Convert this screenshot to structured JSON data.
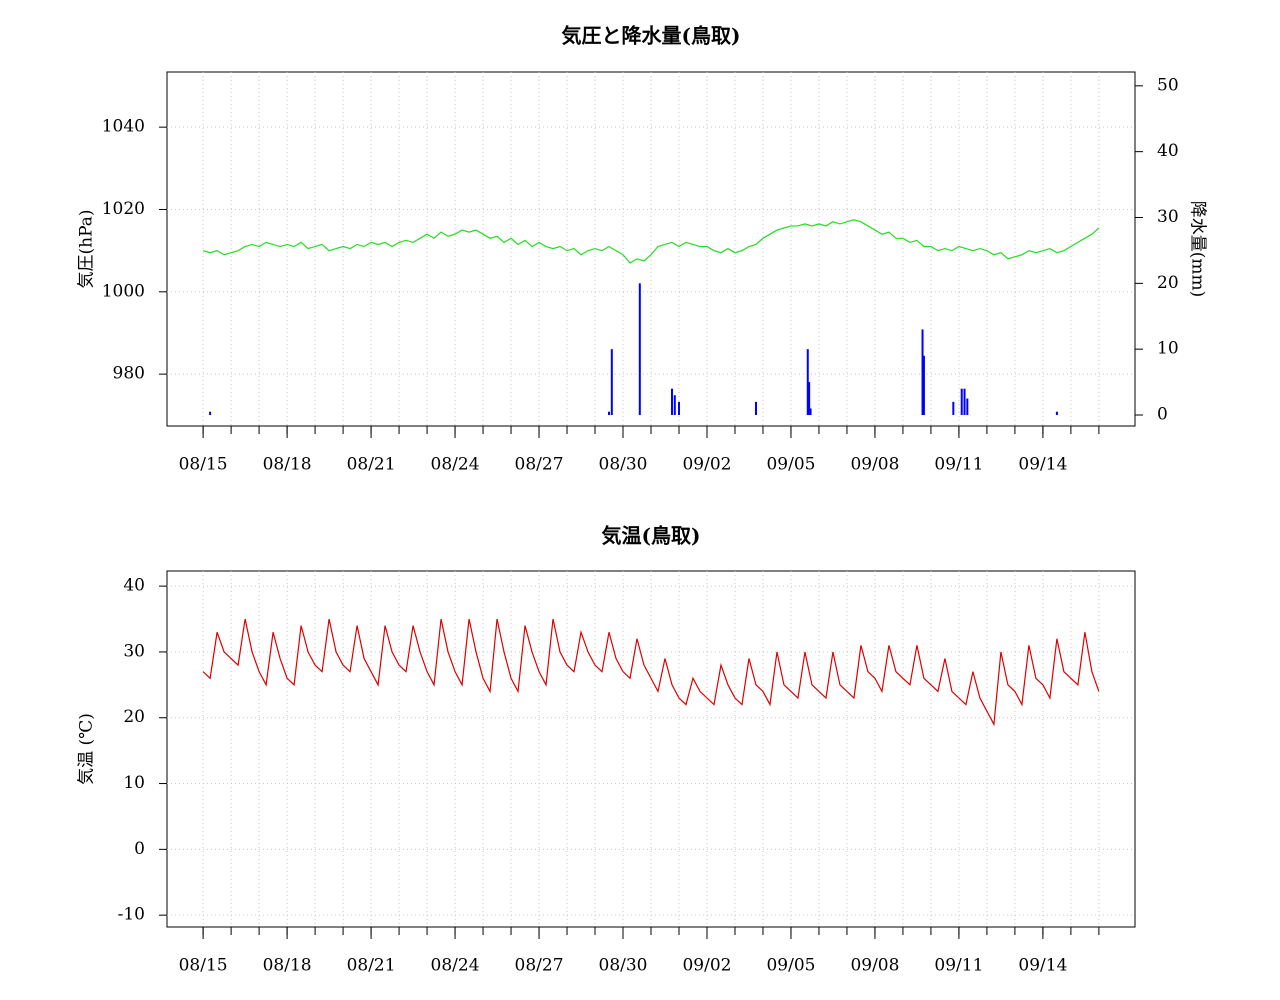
{
  "chart_data": [
    {
      "type": "combo",
      "title": "気圧と降水量(鳥取)",
      "y_label": "気圧(hPa)",
      "y2_label": "降水量(mm)",
      "xlim": [
        -1.29,
        33.29
      ],
      "ylim": [
        967.4,
        1053.4
      ],
      "y2lim": [
        -1.67,
        52.1
      ],
      "xticks": [
        {
          "value": 0,
          "label": "08/15"
        },
        {
          "value": 3,
          "label": "08/18"
        },
        {
          "value": 6,
          "label": "08/21"
        },
        {
          "value": 9,
          "label": "08/24"
        },
        {
          "value": 12,
          "label": "08/27"
        },
        {
          "value": 15,
          "label": "08/30"
        },
        {
          "value": 18,
          "label": "09/02"
        },
        {
          "value": 21,
          "label": "09/05"
        },
        {
          "value": 24,
          "label": "09/08"
        },
        {
          "value": 27,
          "label": "09/11"
        },
        {
          "value": 30,
          "label": "09/14"
        }
      ],
      "xminor_ticks": [
        0,
        1,
        2,
        3,
        4,
        5,
        6,
        7,
        8,
        9,
        10,
        11,
        12,
        13,
        14,
        15,
        16,
        17,
        18,
        19,
        20,
        21,
        22,
        23,
        24,
        25,
        26,
        27,
        28,
        29,
        30,
        31,
        32
      ],
      "yticks": [
        980,
        1000,
        1020,
        1040
      ],
      "y2ticks": [
        0,
        10,
        20,
        30,
        40,
        50
      ],
      "grid": true,
      "series": [
        {
          "type": "line",
          "axis": "y",
          "color": "#22dd22",
          "x": [
            0,
            0.25,
            0.5,
            0.75,
            1,
            1.25,
            1.5,
            1.75,
            2,
            2.25,
            2.5,
            2.75,
            3,
            3.25,
            3.5,
            3.75,
            4,
            4.25,
            4.5,
            4.75,
            5,
            5.25,
            5.5,
            5.75,
            6,
            6.25,
            6.5,
            6.75,
            7,
            7.25,
            7.5,
            7.75,
            8,
            8.25,
            8.5,
            8.75,
            9,
            9.25,
            9.5,
            9.75,
            10,
            10.25,
            10.5,
            10.75,
            11,
            11.25,
            11.5,
            11.75,
            12,
            12.25,
            12.5,
            12.75,
            13,
            13.25,
            13.5,
            13.75,
            14,
            14.25,
            14.5,
            14.75,
            15,
            15.25,
            15.5,
            15.75,
            16,
            16.25,
            16.5,
            16.75,
            17,
            17.25,
            17.5,
            17.75,
            18,
            18.25,
            18.5,
            18.75,
            19,
            19.25,
            19.5,
            19.75,
            20,
            20.25,
            20.5,
            20.75,
            21,
            21.25,
            21.5,
            21.75,
            22,
            22.25,
            22.5,
            22.75,
            23,
            23.25,
            23.5,
            23.75,
            24,
            24.25,
            24.5,
            24.75,
            25,
            25.25,
            25.5,
            25.75,
            26,
            26.25,
            26.5,
            26.75,
            27,
            27.25,
            27.5,
            27.75,
            28,
            28.25,
            28.5,
            28.75,
            29,
            29.25,
            29.5,
            29.75,
            30,
            30.25,
            30.5,
            30.75,
            31,
            31.25,
            31.5,
            31.75,
            32
          ],
          "values": [
            1010,
            1009.5,
            1010,
            1009,
            1009.5,
            1010,
            1011,
            1011.5,
            1011,
            1012,
            1011.5,
            1011,
            1011.5,
            1011,
            1012,
            1010.5,
            1011,
            1011.5,
            1010,
            1010.5,
            1011,
            1010.5,
            1011.5,
            1011,
            1012,
            1011.5,
            1012,
            1011,
            1012,
            1012.5,
            1012,
            1013,
            1014,
            1013,
            1014.5,
            1013.5,
            1014,
            1015,
            1014.5,
            1015,
            1014,
            1013,
            1013.5,
            1012,
            1013,
            1011.5,
            1012.5,
            1011,
            1012,
            1011,
            1010.5,
            1011,
            1010,
            1010.5,
            1009,
            1010,
            1010.5,
            1010,
            1011,
            1010,
            1009,
            1007,
            1008,
            1007.5,
            1009,
            1011,
            1011.5,
            1012,
            1011,
            1012,
            1011.5,
            1011,
            1011,
            1010,
            1009.5,
            1010.5,
            1009.5,
            1010,
            1011,
            1011.5,
            1013,
            1014,
            1015,
            1015.5,
            1016,
            1016,
            1016.5,
            1016,
            1016.5,
            1016,
            1017,
            1016.5,
            1017,
            1017.5,
            1017,
            1016,
            1015,
            1014,
            1014.5,
            1013,
            1013,
            1012,
            1012.5,
            1011,
            1011,
            1010,
            1010.5,
            1010,
            1011,
            1010.5,
            1010,
            1010.5,
            1010,
            1009,
            1009.5,
            1008,
            1008.5,
            1009,
            1010,
            1009.5,
            1010,
            1010.5,
            1009.5,
            1010,
            1011,
            1012,
            1013,
            1014,
            1015.5
          ]
        },
        {
          "type": "bar",
          "axis": "y2",
          "color": "#0000ff",
          "x": [
            0.25,
            14.5,
            14.6,
            15.6,
            16.75,
            16.85,
            17.0,
            19.75,
            21.6,
            21.65,
            21.7,
            25.7,
            25.75,
            26.8,
            27.1,
            27.2,
            27.3,
            30.5
          ],
          "values": [
            0.5,
            0.5,
            10,
            20,
            4,
            3,
            2,
            2,
            10,
            5,
            1,
            13,
            9,
            2,
            4,
            4,
            2.5,
            0.5
          ]
        }
      ]
    },
    {
      "type": "line",
      "title": "気温(鳥取)",
      "y_label": "気温 (℃)",
      "xlim": [
        -1.29,
        33.29
      ],
      "ylim": [
        -11.8,
        42.3
      ],
      "xticks": [
        {
          "value": 0,
          "label": "08/15"
        },
        {
          "value": 3,
          "label": "08/18"
        },
        {
          "value": 6,
          "label": "08/21"
        },
        {
          "value": 9,
          "label": "08/24"
        },
        {
          "value": 12,
          "label": "08/27"
        },
        {
          "value": 15,
          "label": "08/30"
        },
        {
          "value": 18,
          "label": "09/02"
        },
        {
          "value": 21,
          "label": "09/05"
        },
        {
          "value": 24,
          "label": "09/08"
        },
        {
          "value": 27,
          "label": "09/11"
        },
        {
          "value": 30,
          "label": "09/14"
        }
      ],
      "xminor_ticks": [
        0,
        1,
        2,
        3,
        4,
        5,
        6,
        7,
        8,
        9,
        10,
        11,
        12,
        13,
        14,
        15,
        16,
        17,
        18,
        19,
        20,
        21,
        22,
        23,
        24,
        25,
        26,
        27,
        28,
        29,
        30,
        31,
        32
      ],
      "yticks": [
        -10,
        0,
        10,
        20,
        30,
        40
      ],
      "grid": true,
      "series": [
        {
          "type": "line",
          "color": "#dd0000",
          "x": [
            0,
            0.25,
            0.5,
            0.75,
            1,
            1.25,
            1.5,
            1.75,
            2,
            2.25,
            2.5,
            2.75,
            3,
            3.25,
            3.5,
            3.75,
            4,
            4.25,
            4.5,
            4.75,
            5,
            5.25,
            5.5,
            5.75,
            6,
            6.25,
            6.5,
            6.75,
            7,
            7.25,
            7.5,
            7.75,
            8,
            8.25,
            8.5,
            8.75,
            9,
            9.25,
            9.5,
            9.75,
            10,
            10.25,
            10.5,
            10.75,
            11,
            11.25,
            11.5,
            11.75,
            12,
            12.25,
            12.5,
            12.75,
            13,
            13.25,
            13.5,
            13.75,
            14,
            14.25,
            14.5,
            14.75,
            15,
            15.25,
            15.5,
            15.75,
            16,
            16.25,
            16.5,
            16.75,
            17,
            17.25,
            17.5,
            17.75,
            18,
            18.25,
            18.5,
            18.75,
            19,
            19.25,
            19.5,
            19.75,
            20,
            20.25,
            20.5,
            20.75,
            21,
            21.25,
            21.5,
            21.75,
            22,
            22.25,
            22.5,
            22.75,
            23,
            23.25,
            23.5,
            23.75,
            24,
            24.25,
            24.5,
            24.75,
            25,
            25.25,
            25.5,
            25.75,
            26,
            26.25,
            26.5,
            26.75,
            27,
            27.25,
            27.5,
            27.75,
            28,
            28.25,
            28.5,
            28.75,
            29,
            29.25,
            29.5,
            29.75,
            30,
            30.25,
            30.5,
            30.75,
            31,
            31.25,
            31.5,
            31.75,
            32
          ],
          "values": [
            27,
            26,
            33,
            30,
            29,
            28,
            35,
            30,
            27,
            25,
            33,
            29,
            26,
            25,
            34,
            30,
            28,
            27,
            35,
            30,
            28,
            27,
            34,
            29,
            27,
            25,
            34,
            30,
            28,
            27,
            34,
            30,
            27,
            25,
            35,
            30,
            27,
            25,
            35,
            30,
            26,
            24,
            35,
            30,
            26,
            24,
            34,
            30,
            27,
            25,
            35,
            30,
            28,
            27,
            33,
            30,
            28,
            27,
            33,
            29,
            27,
            26,
            32,
            28,
            26,
            24,
            29,
            25,
            23,
            22,
            26,
            24,
            23,
            22,
            28,
            25,
            23,
            22,
            29,
            25,
            24,
            22,
            30,
            25,
            24,
            23,
            30,
            25,
            24,
            23,
            30,
            25,
            24,
            23,
            31,
            27,
            26,
            24,
            31,
            27,
            26,
            25,
            31,
            26,
            25,
            24,
            29,
            24,
            23,
            22,
            27,
            23,
            21,
            19,
            30,
            25,
            24,
            22,
            31,
            26,
            25,
            23,
            32,
            27,
            26,
            25,
            33,
            27,
            24
          ]
        }
      ]
    }
  ]
}
